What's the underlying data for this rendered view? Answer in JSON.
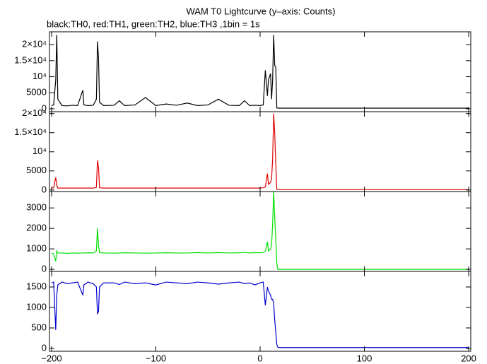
{
  "chart_data": [
    {
      "type": "line",
      "title": "WAM T0 Lightcurve (y–axis: Counts)",
      "subtitle": "black:TH0, red:TH1, green:TH2, blue:TH3 ,1bin = 1s",
      "color": "#000000",
      "x": [
        -200,
        -198,
        -196,
        -195,
        -194,
        -190,
        -185,
        -180,
        -175,
        -170,
        -169,
        -165,
        -160,
        -157,
        -156,
        -155,
        -154,
        -150,
        -140,
        -135,
        -130,
        -120,
        -110,
        -100,
        -90,
        -80,
        -70,
        -60,
        -50,
        -40,
        -30,
        -20,
        -15,
        -10,
        -5,
        0,
        3,
        5,
        7,
        8,
        10,
        11,
        12,
        13,
        14,
        15,
        16,
        17,
        18,
        20,
        40,
        60,
        80,
        100,
        120,
        140,
        160,
        180,
        200
      ],
      "values": [
        1000,
        1200,
        9000,
        23000,
        3000,
        1000,
        900,
        1100,
        1000,
        5800,
        1200,
        1000,
        1100,
        3000,
        21000,
        16000,
        2000,
        1000,
        1100,
        2500,
        1000,
        1200,
        3500,
        1000,
        1500,
        1100,
        1800,
        1000,
        1200,
        3000,
        1100,
        1000,
        2500,
        1000,
        1100,
        1000,
        1200,
        12000,
        4000,
        9000,
        11000,
        3000,
        9000,
        23000,
        13500,
        13000,
        300,
        200,
        200,
        200,
        200,
        200,
        200,
        200,
        200,
        200,
        200,
        200,
        200
      ],
      "xlim": [
        -202,
        202
      ],
      "xticks": [
        -200,
        -100,
        0,
        100,
        200
      ],
      "ylim": [
        -900,
        24000
      ],
      "yticks": [
        0,
        5000,
        {
          "value": 10000,
          "label": "10⁴"
        },
        {
          "value": 15000,
          "label": "1.5×10⁴"
        },
        {
          "value": 20000,
          "label": "2×10⁴"
        }
      ]
    },
    {
      "type": "line",
      "color": "#e00000",
      "x": [
        -200,
        -198,
        -196,
        -195,
        -194,
        -190,
        -185,
        -180,
        -175,
        -170,
        -169,
        -165,
        -160,
        -157,
        -156,
        -155,
        -154,
        -150,
        -140,
        -135,
        -130,
        -120,
        -110,
        -100,
        -90,
        -80,
        -70,
        -60,
        -50,
        -40,
        -30,
        -20,
        -15,
        -10,
        -5,
        0,
        3,
        5,
        7,
        8,
        10,
        11,
        12,
        13,
        14,
        15,
        16,
        17,
        18,
        20,
        40,
        60,
        80,
        100,
        120,
        140,
        160,
        180,
        200
      ],
      "values": [
        500,
        600,
        3300,
        1200,
        500,
        500,
        500,
        500,
        500,
        500,
        500,
        500,
        500,
        700,
        7800,
        6000,
        600,
        500,
        500,
        500,
        500,
        500,
        500,
        500,
        500,
        500,
        500,
        500,
        500,
        500,
        500,
        500,
        500,
        500,
        500,
        500,
        600,
        800,
        4300,
        1500,
        2000,
        3000,
        8000,
        20000,
        15000,
        7000,
        200,
        100,
        100,
        100,
        100,
        100,
        100,
        100,
        100,
        100,
        100,
        100,
        100
      ],
      "xlim": [
        -202,
        202
      ],
      "xticks": [
        -200,
        -100,
        0,
        100,
        200
      ],
      "ylim": [
        -400,
        20500
      ],
      "yticks": [
        0,
        5000,
        {
          "value": 10000,
          "label": "10⁴"
        },
        {
          "value": 15000,
          "label": "1.5×10⁴"
        },
        {
          "value": 20000,
          "label": "2×10⁴"
        }
      ]
    },
    {
      "type": "line",
      "color": "#00e000",
      "x": [
        -200,
        -198,
        -196,
        -195,
        -194,
        -190,
        -185,
        -180,
        -175,
        -170,
        -169,
        -165,
        -160,
        -157,
        -156,
        -155,
        -154,
        -150,
        -140,
        -135,
        -130,
        -120,
        -110,
        -100,
        -90,
        -80,
        -70,
        -60,
        -50,
        -40,
        -30,
        -20,
        -15,
        -10,
        -5,
        0,
        3,
        5,
        7,
        8,
        10,
        11,
        12,
        13,
        14,
        15,
        16,
        17,
        18,
        20,
        40,
        60,
        80,
        100,
        120,
        140,
        160,
        180,
        200
      ],
      "values": [
        800,
        750,
        400,
        900,
        800,
        800,
        780,
        800,
        790,
        800,
        800,
        810,
        800,
        900,
        2000,
        1200,
        820,
        800,
        790,
        800,
        810,
        800,
        790,
        800,
        810,
        800,
        800,
        820,
        800,
        820,
        800,
        810,
        830,
        800,
        820,
        810,
        830,
        880,
        1350,
        900,
        1000,
        1200,
        2200,
        3800,
        2500,
        1500,
        300,
        0,
        0,
        0,
        0,
        0,
        0,
        0,
        0,
        0,
        0,
        0,
        0
      ],
      "xlim": [
        -202,
        202
      ],
      "xticks": [
        -200,
        -100,
        0,
        100,
        200
      ],
      "ylim": [
        -100,
        3800
      ],
      "yticks": [
        0,
        1000,
        2000,
        3000
      ]
    },
    {
      "type": "line",
      "color": "#0000d0",
      "x": [
        -200,
        -198,
        -196,
        -195,
        -194,
        -190,
        -185,
        -180,
        -175,
        -170,
        -169,
        -165,
        -160,
        -157,
        -156,
        -155,
        -154,
        -150,
        -140,
        -135,
        -130,
        -120,
        -110,
        -100,
        -90,
        -80,
        -70,
        -60,
        -50,
        -40,
        -30,
        -20,
        -15,
        -10,
        -5,
        0,
        3,
        5,
        7,
        8,
        10,
        11,
        12,
        13,
        14,
        15,
        16,
        17,
        18,
        20,
        40,
        60,
        80,
        100,
        120,
        140,
        160,
        180,
        200
      ],
      "values": [
        1600,
        1620,
        450,
        1300,
        1550,
        1620,
        1580,
        1600,
        1620,
        1300,
        1550,
        1620,
        1580,
        1500,
        850,
        900,
        1500,
        1600,
        1600,
        1560,
        1620,
        1580,
        1600,
        1550,
        1620,
        1600,
        1580,
        1620,
        1600,
        1570,
        1600,
        1620,
        1580,
        1600,
        1550,
        1600,
        1620,
        1050,
        1500,
        1400,
        1300,
        1200,
        1200,
        1100,
        700,
        400,
        100,
        30,
        20,
        20,
        20,
        20,
        20,
        20,
        20,
        20,
        20,
        20,
        20
      ],
      "xlim": [
        -202,
        202
      ],
      "xticks": [
        {
          "value": -200,
          "label": "−200"
        },
        {
          "value": -100,
          "label": "−100"
        },
        0,
        100,
        200
      ],
      "ylim": [
        -70,
        1880
      ],
      "yticks": [
        0,
        500,
        1000,
        1500
      ]
    }
  ]
}
